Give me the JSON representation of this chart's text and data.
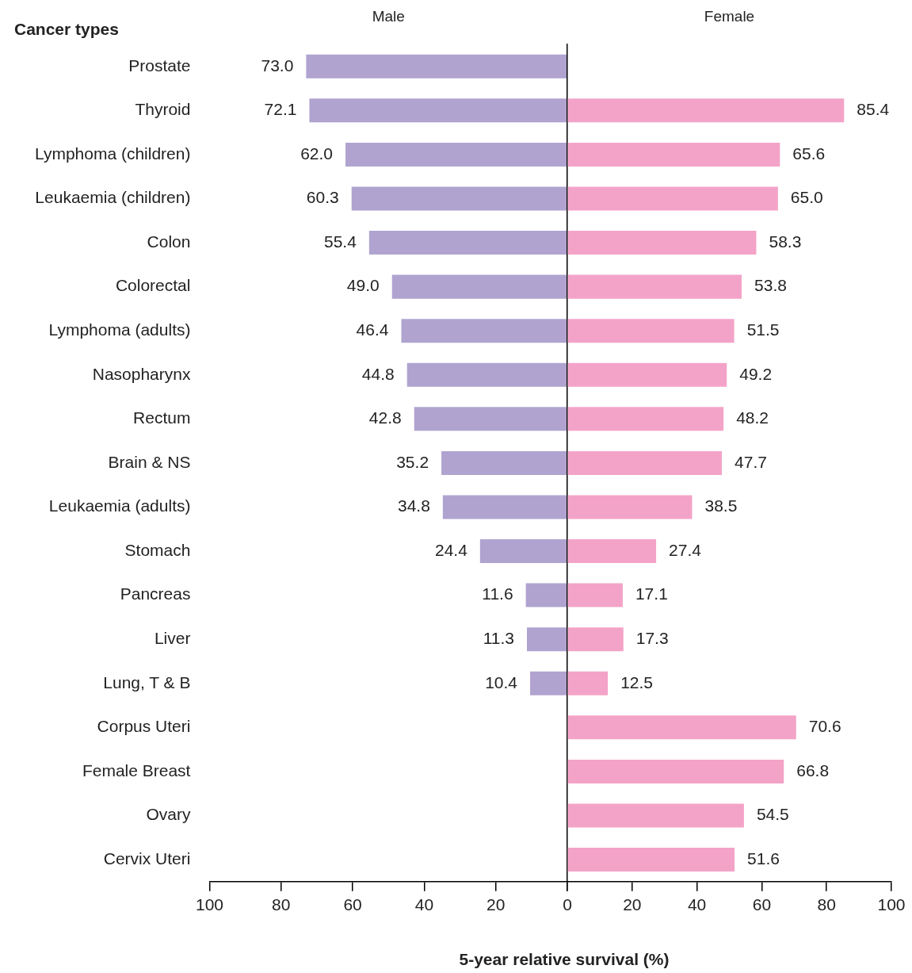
{
  "chart_data": [
    {
      "type": "bar",
      "orientation": "horizontal",
      "title": "Male",
      "xlabel": "5-year relative survival (%)",
      "ylabel": "Cancer types",
      "categories": [
        "Prostate",
        "Thyroid",
        "Lymphoma (children)",
        "Leukaemia (children)",
        "Colon",
        "Colorectal",
        "Lymphoma (adults)",
        "Nasopharynx",
        "Rectum",
        "Brain & NS",
        "Leukaemia (adults)",
        "Stomach",
        "Pancreas",
        "Liver",
        "Lung, T & B",
        "Corpus Uteri",
        "Female Breast",
        "Ovary",
        "Cervix Uteri"
      ],
      "series": [
        {
          "color": "#b0a3d0",
          "values": [
            73.0,
            72.1,
            62.0,
            60.3,
            55.4,
            49.0,
            46.4,
            44.8,
            42.8,
            35.2,
            34.8,
            24.4,
            11.6,
            11.3,
            10.4,
            null,
            null,
            null,
            null
          ],
          "value_labels": [
            "73.0",
            "72.1",
            "62.0",
            "60.3",
            "55.4",
            "49.0",
            "46.4",
            "44.8",
            "42.8",
            "35.2",
            "34.8",
            "24.4",
            "11.6",
            "11.3",
            "10.4",
            null,
            null,
            null,
            null
          ]
        }
      ],
      "xlim": [
        100,
        0
      ],
      "xticks": [
        100,
        80,
        60,
        40,
        20,
        {
          "value": 0,
          "label": null
        }
      ],
      "grid": false,
      "legend": false
    },
    {
      "type": "bar",
      "orientation": "horizontal",
      "title": "Female",
      "tick_labels": "x",
      "categories": [
        null,
        null,
        null,
        null,
        null,
        null,
        null,
        null,
        null,
        null,
        null,
        null,
        null,
        null,
        null,
        null,
        null,
        null,
        null
      ],
      "series": [
        {
          "color": "#f4a3c8",
          "values": [
            null,
            85.4,
            65.6,
            65.0,
            58.3,
            53.8,
            51.5,
            49.2,
            48.2,
            47.7,
            38.5,
            27.4,
            17.1,
            17.3,
            12.5,
            70.6,
            66.8,
            54.5,
            51.6
          ],
          "value_labels": [
            null,
            "85.4",
            "65.6",
            "65.0",
            "58.3",
            "53.8",
            "51.5",
            "49.2",
            "48.2",
            "47.7",
            "38.5",
            "27.4",
            "17.1",
            "17.3",
            "12.5",
            "70.6",
            "66.8",
            "54.5",
            "51.6"
          ]
        }
      ],
      "xlim": [
        0,
        100
      ],
      "xticks": [
        0,
        20,
        40,
        60,
        80,
        100
      ],
      "grid": false,
      "legend": false
    }
  ]
}
